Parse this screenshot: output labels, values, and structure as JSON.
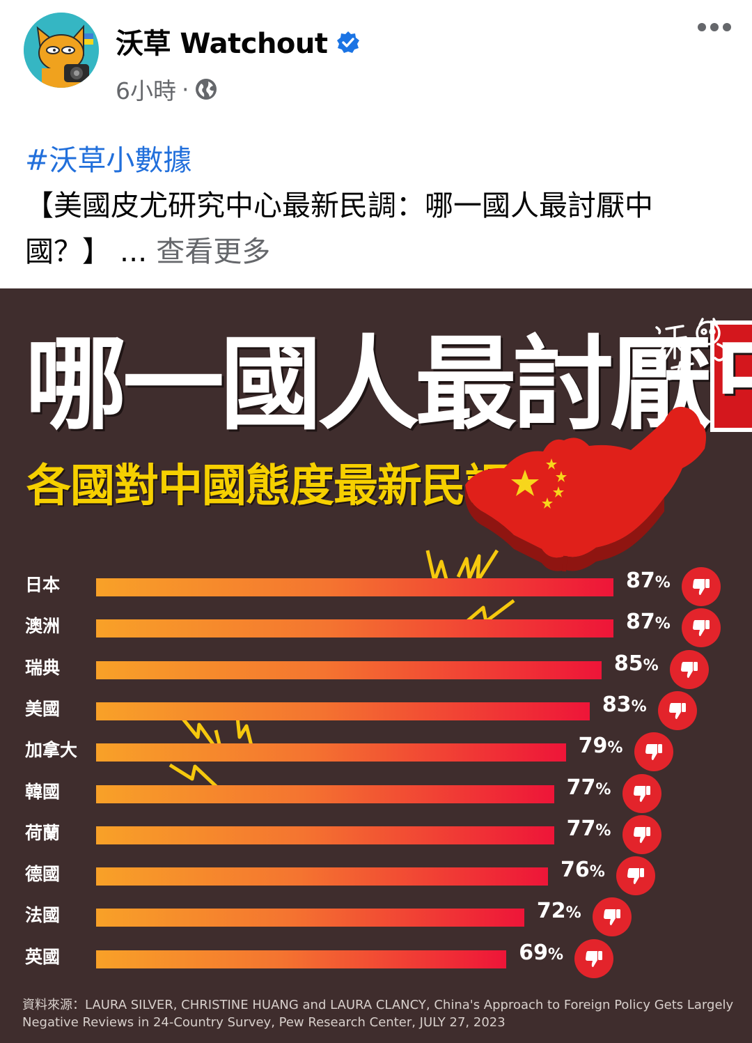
{
  "post": {
    "author": "沃草 Watchout",
    "time": "6小時",
    "separator": "·",
    "hashtag": "#沃草小數據",
    "caption": "【美國皮尤研究中心最新民調：哪一國人最討厭中國？】",
    "ellipsis": "...",
    "see_more": "查看更多"
  },
  "infographic": {
    "title_prefix": "哪一國人最討厭",
    "title_highlight": "中國",
    "title_suffix": "？",
    "subtitle": "各國對中國態度最新民調",
    "signature": "沃草",
    "source": "資料來源：LAURA SILVER, CHRISTINE HUANG and LAURA CLANCY, China's Approach to Foreign Policy Gets Largely Negative Reviews in 24-Country Survey,  Pew Research Center, JULY 27, 2023"
  },
  "chart_data": {
    "type": "bar",
    "categories": [
      "日本",
      "澳洲",
      "瑞典",
      "美國",
      "加拿大",
      "韓國",
      "荷蘭",
      "德國",
      "法國",
      "英國"
    ],
    "values": [
      87,
      87,
      85,
      83,
      79,
      77,
      77,
      76,
      72,
      69
    ],
    "labels": [
      "87",
      "87",
      "85",
      "83",
      "79",
      "77",
      "77",
      "76",
      "72",
      "69"
    ],
    "unit": "%",
    "orientation": "horizontal",
    "title": "哪一國人最討厭中國？",
    "subtitle": "各國對中國態度最新民調",
    "xlabel": "",
    "ylabel": "",
    "grid": false
  },
  "colors": {
    "background": "#3f2d2d",
    "title_highlight": "#d4171d",
    "subtitle": "#f6d000",
    "bar_start": "#f8a128",
    "bar_end": "#ee1538",
    "thumb": "#e3242b",
    "hashtag": "#216fdb"
  },
  "icons": {
    "verified": "verified-badge-icon",
    "audience": "globe-icon",
    "menu": "more-options-icon",
    "thumb": "thumbs-down-icon"
  }
}
